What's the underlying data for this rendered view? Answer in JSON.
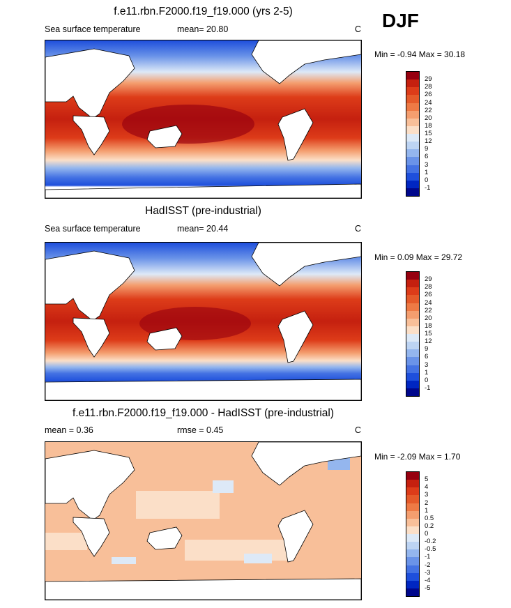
{
  "header": {
    "season": "DJF"
  },
  "panels": [
    {
      "title": "f.e11.rbn.F2000.f19_f19.000 (yrs 2-5)",
      "left_label": "Sea surface temperature",
      "mean_label": "mean=  20.80",
      "units": "C",
      "minmax": "Min =  -0.94 Max =  30.18",
      "colorbar": {
        "colors": [
          "#96000f",
          "#c5200f",
          "#dd3c19",
          "#e55a2a",
          "#ee7a45",
          "#f49e6f",
          "#f8bf99",
          "#fbdfc8",
          "#dde9f7",
          "#bdd4f3",
          "#94b6ee",
          "#6a93e8",
          "#4472e3",
          "#1e4fdc",
          "#0026c2",
          "#00078c"
        ],
        "labels": [
          "29",
          "28",
          "26",
          "24",
          "22",
          "20",
          "18",
          "15",
          "12",
          "9",
          "6",
          "3",
          "1",
          "0",
          "-1"
        ]
      }
    },
    {
      "title": "HadISST (pre-industrial)",
      "left_label": "Sea surface temperature",
      "mean_label": "mean=  20.44",
      "units": "C",
      "minmax": "Min =   0.09 Max =  29.72",
      "colorbar": {
        "colors": [
          "#96000f",
          "#c5200f",
          "#dd3c19",
          "#e55a2a",
          "#ee7a45",
          "#f49e6f",
          "#f8bf99",
          "#fbdfc8",
          "#dde9f7",
          "#bdd4f3",
          "#94b6ee",
          "#6a93e8",
          "#4472e3",
          "#1e4fdc",
          "#0026c2",
          "#00078c"
        ],
        "labels": [
          "29",
          "28",
          "26",
          "24",
          "22",
          "20",
          "18",
          "15",
          "12",
          "9",
          "6",
          "3",
          "1",
          "0",
          "-1"
        ]
      }
    },
    {
      "title": "f.e11.rbn.F2000.f19_f19.000 - HadISST (pre-industrial)",
      "left_label": "mean =   0.36",
      "mean_label": "rmse =   0.45",
      "units": "C",
      "minmax": "Min =  -2.09 Max =   1.70",
      "colorbar": {
        "colors": [
          "#96000f",
          "#c5200f",
          "#dd3c19",
          "#e55a2a",
          "#ee7a45",
          "#f49e6f",
          "#f8bf99",
          "#fbdfc8",
          "#dde9f7",
          "#bdd4f3",
          "#94b6ee",
          "#6a93e8",
          "#4472e3",
          "#1e4fdc",
          "#0026c2",
          "#00078c"
        ],
        "labels": [
          "5",
          "4",
          "3",
          "2",
          "1",
          "0.5",
          "0.2",
          "0",
          "-0.2",
          "-0.5",
          "-1",
          "-2",
          "-3",
          "-4",
          "-5"
        ]
      }
    }
  ]
}
